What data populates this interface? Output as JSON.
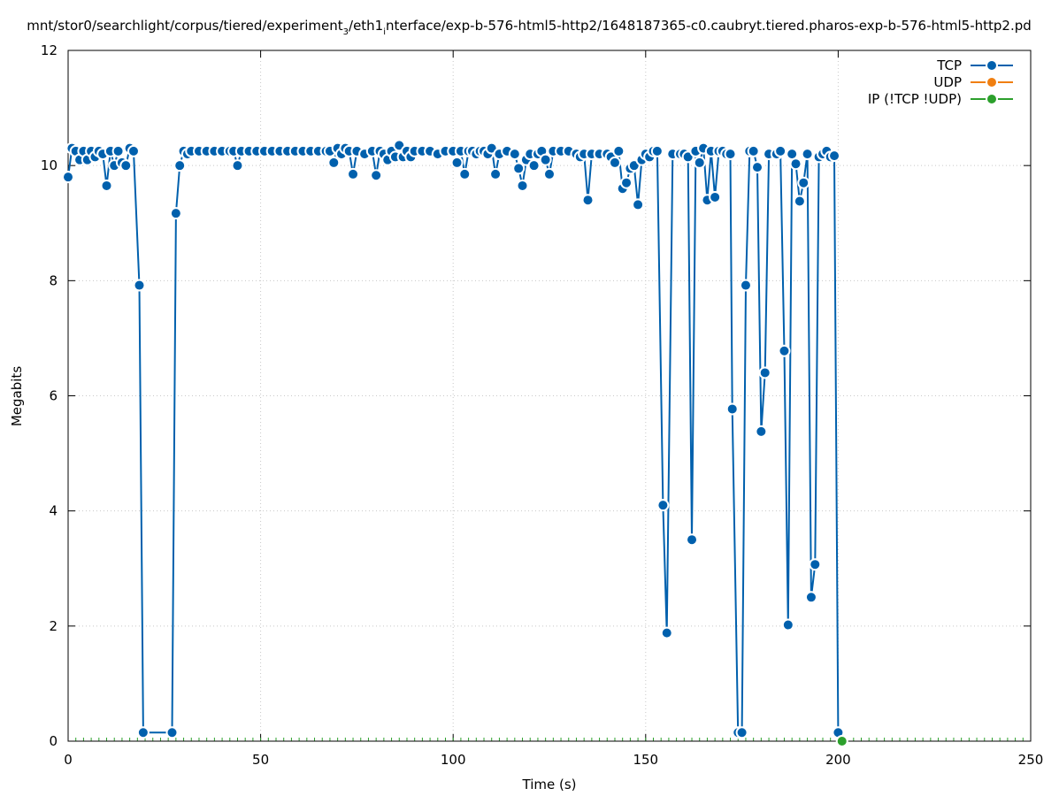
{
  "chart_data": {
    "type": "line",
    "title": {
      "before": "mnt/stor0/searchlight/corpus/tiered/experiment",
      "sub1": "3",
      "middle": "/eth1",
      "sub2": "i",
      "after": "nterface/exp-b-576-html5-http2/1648187365-c0.caubryt.tiered.pharos-exp-b-576-html5-http2.pd"
    },
    "xlabel": "Time (s)",
    "ylabel": "Megabits",
    "xlim": [
      0,
      250
    ],
    "ylim": [
      0,
      12
    ],
    "xticks": [
      0,
      50,
      100,
      150,
      200,
      250
    ],
    "yticks": [
      0,
      2,
      4,
      6,
      8,
      10,
      12
    ],
    "x_minor_step": 2,
    "grid": true,
    "legend_position": "top-right",
    "series": [
      {
        "name": "TCP",
        "color": "#0060ad",
        "points": [
          [
            0,
            9.8
          ],
          [
            1,
            10.3
          ],
          [
            2,
            10.25
          ],
          [
            3,
            10.1
          ],
          [
            4,
            10.25
          ],
          [
            5,
            10.1
          ],
          [
            6,
            10.25
          ],
          [
            7,
            10.15
          ],
          [
            8,
            10.25
          ],
          [
            9,
            10.2
          ],
          [
            10,
            9.65
          ],
          [
            11,
            10.25
          ],
          [
            12,
            10.0
          ],
          [
            13,
            10.25
          ],
          [
            14,
            10.05
          ],
          [
            15,
            10.0
          ],
          [
            16,
            10.3
          ],
          [
            17,
            10.25
          ],
          [
            18.5,
            7.92
          ],
          [
            19.5,
            0.15
          ],
          [
            27,
            0.15
          ],
          [
            28,
            9.17
          ],
          [
            29,
            10.0
          ],
          [
            30,
            10.25
          ],
          [
            31,
            10.2
          ],
          [
            32,
            10.25
          ],
          [
            34,
            10.25
          ],
          [
            36,
            10.25
          ],
          [
            38,
            10.25
          ],
          [
            40,
            10.25
          ],
          [
            42,
            10.25
          ],
          [
            43,
            10.25
          ],
          [
            44,
            10.0
          ],
          [
            45,
            10.25
          ],
          [
            47,
            10.25
          ],
          [
            49,
            10.25
          ],
          [
            51,
            10.25
          ],
          [
            53,
            10.25
          ],
          [
            55,
            10.25
          ],
          [
            57,
            10.25
          ],
          [
            59,
            10.25
          ],
          [
            61,
            10.25
          ],
          [
            63,
            10.25
          ],
          [
            65,
            10.25
          ],
          [
            67,
            10.25
          ],
          [
            68,
            10.25
          ],
          [
            69,
            10.05
          ],
          [
            70,
            10.3
          ],
          [
            71,
            10.2
          ],
          [
            72,
            10.3
          ],
          [
            73,
            10.25
          ],
          [
            74,
            9.85
          ],
          [
            75,
            10.25
          ],
          [
            77,
            10.2
          ],
          [
            79,
            10.25
          ],
          [
            80,
            9.83
          ],
          [
            81,
            10.25
          ],
          [
            82,
            10.2
          ],
          [
            83,
            10.1
          ],
          [
            84,
            10.25
          ],
          [
            85,
            10.15
          ],
          [
            86,
            10.35
          ],
          [
            87,
            10.15
          ],
          [
            88,
            10.25
          ],
          [
            89,
            10.15
          ],
          [
            90,
            10.25
          ],
          [
            92,
            10.25
          ],
          [
            94,
            10.25
          ],
          [
            96,
            10.2
          ],
          [
            98,
            10.25
          ],
          [
            100,
            10.25
          ],
          [
            101,
            10.05
          ],
          [
            102,
            10.25
          ],
          [
            103,
            9.85
          ],
          [
            104,
            10.25
          ],
          [
            105,
            10.25
          ],
          [
            106,
            10.2
          ],
          [
            107,
            10.25
          ],
          [
            108,
            10.25
          ],
          [
            109,
            10.2
          ],
          [
            110,
            10.3
          ],
          [
            111,
            9.85
          ],
          [
            112,
            10.2
          ],
          [
            114,
            10.25
          ],
          [
            116,
            10.2
          ],
          [
            117,
            9.95
          ],
          [
            118,
            9.65
          ],
          [
            119,
            10.1
          ],
          [
            120,
            10.2
          ],
          [
            121,
            10.0
          ],
          [
            122,
            10.2
          ],
          [
            123,
            10.25
          ],
          [
            124,
            10.1
          ],
          [
            125,
            9.85
          ],
          [
            126,
            10.25
          ],
          [
            128,
            10.25
          ],
          [
            130,
            10.25
          ],
          [
            132,
            10.2
          ],
          [
            133,
            10.15
          ],
          [
            134,
            10.2
          ],
          [
            135,
            9.4
          ],
          [
            136,
            10.2
          ],
          [
            138,
            10.2
          ],
          [
            140,
            10.2
          ],
          [
            141,
            10.15
          ],
          [
            142,
            10.05
          ],
          [
            143,
            10.25
          ],
          [
            144,
            9.6
          ],
          [
            145,
            9.7
          ],
          [
            146,
            9.95
          ],
          [
            147,
            10.0
          ],
          [
            148,
            9.32
          ],
          [
            149,
            10.1
          ],
          [
            150,
            10.2
          ],
          [
            151,
            10.15
          ],
          [
            152,
            10.25
          ],
          [
            153,
            10.25
          ],
          [
            154.5,
            4.1
          ],
          [
            155.5,
            1.88
          ],
          [
            157,
            10.2
          ],
          [
            159,
            10.2
          ],
          [
            160,
            10.2
          ],
          [
            161,
            10.15
          ],
          [
            162,
            3.5
          ],
          [
            163,
            10.25
          ],
          [
            164,
            10.05
          ],
          [
            165,
            10.3
          ],
          [
            166,
            9.4
          ],
          [
            167,
            10.25
          ],
          [
            168,
            9.45
          ],
          [
            169,
            10.25
          ],
          [
            170,
            10.25
          ],
          [
            171,
            10.2
          ],
          [
            172,
            10.2
          ],
          [
            172.5,
            5.77
          ],
          [
            174,
            0.15
          ],
          [
            175,
            0.15
          ],
          [
            176,
            7.92
          ],
          [
            177,
            10.25
          ],
          [
            178,
            10.25
          ],
          [
            179,
            9.97
          ],
          [
            180,
            5.38
          ],
          [
            181,
            6.4
          ],
          [
            182,
            10.2
          ],
          [
            184,
            10.2
          ],
          [
            185,
            10.25
          ],
          [
            186,
            6.78
          ],
          [
            187,
            2.02
          ],
          [
            188,
            10.2
          ],
          [
            189,
            10.03
          ],
          [
            190,
            9.38
          ],
          [
            191,
            9.7
          ],
          [
            192,
            10.2
          ],
          [
            193,
            2.5
          ],
          [
            194,
            3.07
          ],
          [
            195,
            10.15
          ],
          [
            196,
            10.2
          ],
          [
            197,
            10.25
          ],
          [
            198,
            10.15
          ],
          [
            199,
            10.17
          ],
          [
            200,
            0.15
          ]
        ]
      },
      {
        "name": "UDP",
        "color": "#f07f11",
        "points": []
      },
      {
        "name": "IP (!TCP  !UDP)",
        "color": "#2ca02c",
        "points": [
          [
            201,
            0.0
          ]
        ]
      }
    ]
  }
}
